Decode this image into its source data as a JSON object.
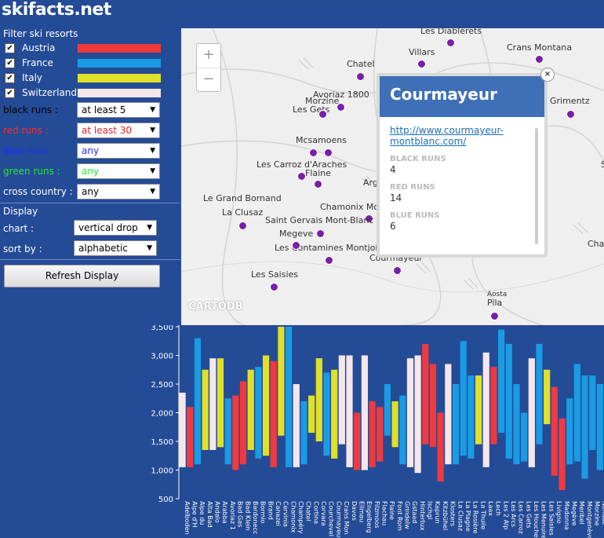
{
  "app": {
    "title": "skifacts.net"
  },
  "filter": {
    "heading": "Filter ski resorts",
    "countries": [
      {
        "label": "Austria",
        "color": "#ef3a40",
        "checked": "✔"
      },
      {
        "label": "France",
        "color": "#1a9be3",
        "checked": "✔"
      },
      {
        "label": "Italy",
        "color": "#e0e02b",
        "checked": "✔"
      },
      {
        "label": "Switzerland",
        "color": "#f4e6ea",
        "checked": "✔"
      }
    ],
    "runs": [
      {
        "label": "black runs :",
        "value": "at least 5",
        "label_color": "#000000",
        "value_color": "#000000"
      },
      {
        "label": "red runs :",
        "value": "at least 30",
        "label_color": "#ff2a2a",
        "value_color": "#e8222e"
      },
      {
        "label": "blue runs :",
        "value": "any",
        "label_color": "#1d2fff",
        "value_color": "#1d2fff"
      },
      {
        "label": "green runs :",
        "value": "any",
        "label_color": "#28e63a",
        "value_color": "#28e63a"
      },
      {
        "label": "cross country :",
        "value": "any",
        "label_color": "#ffffff",
        "value_color": "#000000"
      }
    ]
  },
  "display": {
    "heading": "Display",
    "chart_label": "chart :",
    "chart_value": "vertical drop",
    "sort_label": "sort by :",
    "sort_value": "alphabetic",
    "refresh_label": "Refresh Display"
  },
  "map": {
    "zoom_in": "+",
    "zoom_out": "−",
    "attribution_small": "POWERED BY",
    "attribution": "CARTODB",
    "places": [
      {
        "name": "Les Diablerets"
      },
      {
        "name": "Villars"
      },
      {
        "name": "Chatel"
      },
      {
        "name": "Crans Montana"
      },
      {
        "name": "Avoriaz 1800"
      },
      {
        "name": "Morzine"
      },
      {
        "name": "Les Gets"
      },
      {
        "name": "Grimentz"
      },
      {
        "name": "Mcsamoens"
      },
      {
        "name": "Les Carroz d'Araches"
      },
      {
        "name": "Flaine"
      },
      {
        "name": "Arg"
      },
      {
        "name": "Le Grand Bornand"
      },
      {
        "name": "La Clusaz"
      },
      {
        "name": "Chamonix Mo"
      },
      {
        "name": "Saint Gervais Mont-Blanc"
      },
      {
        "name": "Megeve"
      },
      {
        "name": "Les Contamines Montjoie"
      },
      {
        "name": "Courmayeur"
      },
      {
        "name": "Les Saisies"
      },
      {
        "name": "Aosta"
      },
      {
        "name": "Pila"
      },
      {
        "name": "Cha"
      },
      {
        "name": "S"
      }
    ],
    "popup": {
      "title": "Courmayeur",
      "link_line1": "http://www.courmayeur-",
      "link_line2": "montblanc.com/",
      "black_label": "BLACK RUNS",
      "black_value": "4",
      "red_label": "RED RUNS",
      "red_value": "14",
      "blue_label": "BLUE RUNS",
      "blue_value": "6",
      "close": "×"
    }
  },
  "chart_data": {
    "type": "bar",
    "subtype": "floating range (base to top elevation)",
    "ylim": [
      500,
      3500
    ],
    "yticks": [
      "500",
      "1,000",
      "1,500",
      "2,000",
      "2,500",
      "3,000",
      "3,500"
    ],
    "categories": [
      "Adelboden",
      "Alpe d'H",
      "Alpe du",
      "Alta Bad",
      "Andalo",
      "Arabba",
      "Avoriaz 1",
      "Bad Gas",
      "Bad Klein",
      "Bardonecc",
      "Bormio",
      "Brand",
      "Canazei",
      "Cervinia",
      "Chamonix",
      "Champéry",
      "Chatel",
      "Cortina",
      "Corvara",
      "Courchevel",
      "Courmayeur",
      "Crans Mon",
      "Davos",
      "Ellmau",
      "Engelberg",
      "Filzmoos",
      "Flachau",
      "Flaine",
      "Font Rom",
      "Grindelw",
      "Gstaad",
      "Hintertux",
      "Ischgl",
      "Kaprun",
      "Kitzbühel",
      "Klosters",
      "La Clusaz",
      "La Plagne",
      "La Rosière",
      "La Thuile",
      "Laax",
      "Lech",
      "Les 2 Alp",
      "Les Arcs",
      "Les Carroz",
      "Les Gets",
      "Les Houches",
      "Les Menuires",
      "Les Saisies",
      "Livigno",
      "Madonna",
      "Megève",
      "Meribel",
      "Montgenèvre",
      "Morzine",
      "Nendaz"
    ],
    "series": [
      {
        "country": "Switzerland",
        "color": "#f4e6ea",
        "low": 1050,
        "high": 2350
      },
      {
        "country": "Austria",
        "color": "#ef3a40",
        "low": 1050,
        "high": 2100
      },
      {
        "country": "France",
        "color": "#1a9be3",
        "low": 1100,
        "high": 3300
      },
      {
        "country": "Italy",
        "color": "#e0e02b",
        "low": 1350,
        "high": 2750
      },
      {
        "country": "Switzerland",
        "color": "#f4e6ea",
        "low": 1350,
        "high": 2950
      },
      {
        "country": "Italy",
        "color": "#e0e02b",
        "low": 1400,
        "high": 2950
      },
      {
        "country": "France",
        "color": "#1a9be3",
        "low": 1100,
        "high": 2250
      },
      {
        "country": "Austria",
        "color": "#ef3a40",
        "low": 1000,
        "high": 2300
      },
      {
        "country": "Austria",
        "color": "#ef3a40",
        "low": 1100,
        "high": 2550
      },
      {
        "country": "Italy",
        "color": "#e0e02b",
        "low": 1350,
        "high": 2750
      },
      {
        "country": "France",
        "color": "#1a9be3",
        "low": 1200,
        "high": 2800
      },
      {
        "country": "Italy",
        "color": "#e0e02b",
        "low": 1250,
        "high": 3000
      },
      {
        "country": "Austria",
        "color": "#ef3a40",
        "low": 1050,
        "high": 2900
      },
      {
        "country": "Italy",
        "color": "#e0e02b",
        "low": 1600,
        "high": 3500
      },
      {
        "country": "France",
        "color": "#1a9be3",
        "low": 1050,
        "high": 3500
      },
      {
        "country": "Switzerland",
        "color": "#f4e6ea",
        "low": 1050,
        "high": 2500
      },
      {
        "country": "France",
        "color": "#1a9be3",
        "low": 1100,
        "high": 2200
      },
      {
        "country": "Italy",
        "color": "#e0e02b",
        "low": 1650,
        "high": 2300
      },
      {
        "country": "Italy",
        "color": "#e0e02b",
        "low": 1500,
        "high": 2950
      },
      {
        "country": "France",
        "color": "#1a9be3",
        "low": 1250,
        "high": 2700
      },
      {
        "country": "Italy",
        "color": "#e0e02b",
        "low": 1200,
        "high": 2750
      },
      {
        "country": "Switzerland",
        "color": "#f4e6ea",
        "low": 1450,
        "high": 3000
      },
      {
        "country": "Switzerland",
        "color": "#f4e6ea",
        "low": 1050,
        "high": 3000
      },
      {
        "country": "Austria",
        "color": "#ef3a40",
        "low": 1000,
        "high": 2000
      },
      {
        "country": "Switzerland",
        "color": "#f4e6ea",
        "low": 1000,
        "high": 3000
      },
      {
        "country": "Austria",
        "color": "#ef3a40",
        "low": 1050,
        "high": 2200
      },
      {
        "country": "Austria",
        "color": "#ef3a40",
        "low": 1150,
        "high": 2100
      },
      {
        "country": "France",
        "color": "#1a9be3",
        "low": 1600,
        "high": 2500
      },
      {
        "country": "Italy",
        "color": "#e0e02b",
        "low": 1400,
        "high": 2200
      },
      {
        "country": "France",
        "color": "#1a9be3",
        "low": 1100,
        "high": 2300
      },
      {
        "country": "Switzerland",
        "color": "#f4e6ea",
        "low": 1050,
        "high": 2950
      },
      {
        "country": "Switzerland",
        "color": "#f4e6ea",
        "low": 950,
        "high": 3000
      },
      {
        "country": "Austria",
        "color": "#ef3a40",
        "low": 1450,
        "high": 3200
      },
      {
        "country": "Austria",
        "color": "#ef3a40",
        "low": 1400,
        "high": 2850
      },
      {
        "country": "Austria",
        "color": "#ef3a40",
        "low": 800,
        "high": 2000
      },
      {
        "country": "Switzerland",
        "color": "#f4e6ea",
        "low": 1100,
        "high": 2850
      },
      {
        "country": "France",
        "color": "#1a9be3",
        "low": 1100,
        "high": 2500
      },
      {
        "country": "France",
        "color": "#1a9be3",
        "low": 1250,
        "high": 3250
      },
      {
        "country": "France",
        "color": "#1a9be3",
        "low": 1200,
        "high": 2650
      },
      {
        "country": "Italy",
        "color": "#e0e02b",
        "low": 1450,
        "high": 2650
      },
      {
        "country": "Switzerland",
        "color": "#f4e6ea",
        "low": 1050,
        "high": 3050
      },
      {
        "country": "Austria",
        "color": "#ef3a40",
        "low": 1450,
        "high": 2800
      },
      {
        "country": "France",
        "color": "#1a9be3",
        "low": 1650,
        "high": 3450
      },
      {
        "country": "France",
        "color": "#1a9be3",
        "low": 1200,
        "high": 3200
      },
      {
        "country": "France",
        "color": "#1a9be3",
        "low": 1100,
        "high": 2500
      },
      {
        "country": "France",
        "color": "#1a9be3",
        "low": 1150,
        "high": 2000
      },
      {
        "country": "Switzerland",
        "color": "#f4e6ea",
        "low": 1050,
        "high": 2950
      },
      {
        "country": "France",
        "color": "#1a9be3",
        "low": 1450,
        "high": 3200
      },
      {
        "country": "Italy",
        "color": "#e0e02b",
        "low": 1800,
        "high": 2750
      },
      {
        "country": "Austria",
        "color": "#ef3a40",
        "low": 900,
        "high": 2450
      },
      {
        "country": "Austria",
        "color": "#ef3a40",
        "low": 650,
        "high": 1900
      },
      {
        "country": "France",
        "color": "#1a9be3",
        "low": 1100,
        "high": 2250
      },
      {
        "country": "France",
        "color": "#1a9be3",
        "low": 1150,
        "high": 2850
      },
      {
        "country": "France",
        "color": "#1a9be3",
        "low": 850,
        "high": 2650
      },
      {
        "country": "France",
        "color": "#1a9be3",
        "low": 1350,
        "high": 2650
      },
      {
        "country": "France",
        "color": "#1a9be3",
        "low": 1000,
        "high": 2500
      }
    ]
  }
}
